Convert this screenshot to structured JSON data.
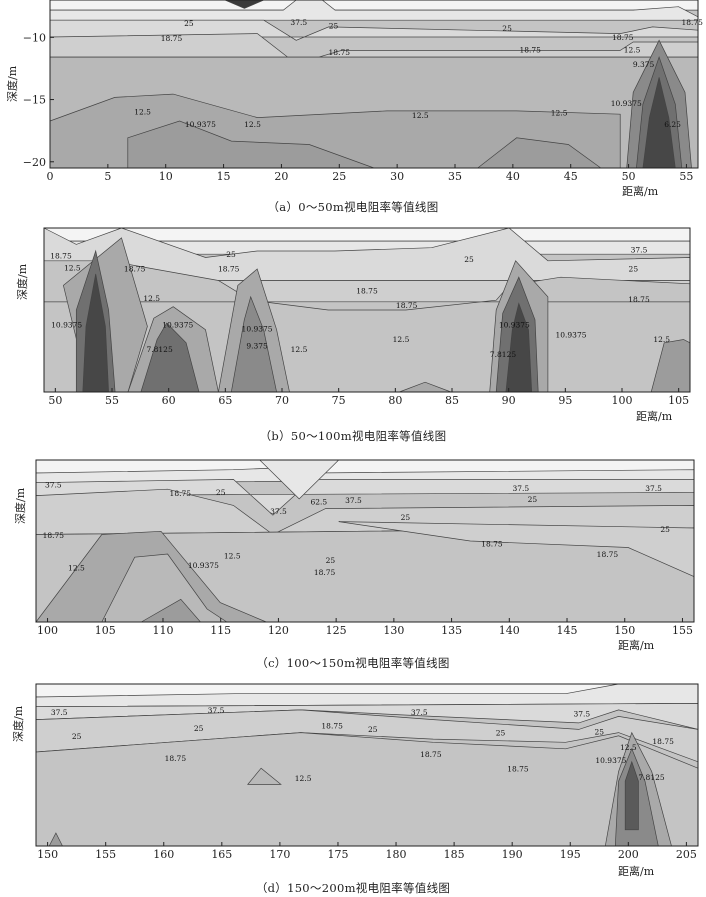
{
  "colors": {
    "background": "#ffffff",
    "contour_line": "#444444",
    "levels_fill": [
      "#a9a9a9",
      "#b9b9b9",
      "#c4c4c4",
      "#cfcfcf",
      "#dadada",
      "#e7e7e7",
      "#f4f4f4"
    ],
    "low_fill": [
      "#8a8a8a",
      "#707070",
      "#5a5a5a",
      "#474747"
    ]
  },
  "chart_data": [
    {
      "type": "contour",
      "caption": "（a）0～50m视电阻率等值线图",
      "ylabel": "深度/m",
      "xlabel": "距离/m",
      "xlim": [
        0,
        56
      ],
      "ylim": [
        -20.5,
        -7
      ],
      "xticks": [
        0,
        5,
        10,
        15,
        20,
        25,
        30,
        35,
        40,
        45,
        50,
        55
      ],
      "yticks": [
        -10,
        -15,
        -20
      ],
      "ytick_labels": [
        "−10",
        "−15",
        "−20"
      ],
      "contour_labels": [
        {
          "text": "37.5",
          "x": 21.5,
          "y": -9.0
        },
        {
          "text": "25",
          "x": 12,
          "y": -9.1
        },
        {
          "text": "25",
          "x": 24.5,
          "y": -9.3
        },
        {
          "text": "25",
          "x": 39.5,
          "y": -9.5
        },
        {
          "text": "18.75",
          "x": 10.5,
          "y": -10.3
        },
        {
          "text": "18.75",
          "x": 25,
          "y": -11.4
        },
        {
          "text": "18.75",
          "x": 41.5,
          "y": -11.2
        },
        {
          "text": "18.75",
          "x": 49.5,
          "y": -10.2
        },
        {
          "text": "18.75",
          "x": 55.5,
          "y": -9.0
        },
        {
          "text": "12.5",
          "x": 8,
          "y": -16.2
        },
        {
          "text": "12.5",
          "x": 17.5,
          "y": -17.2
        },
        {
          "text": "12.5",
          "x": 32,
          "y": -16.5
        },
        {
          "text": "12.5",
          "x": 44,
          "y": -16.3
        },
        {
          "text": "12.5",
          "x": 50.3,
          "y": -11.2
        },
        {
          "text": "10.9375",
          "x": 13,
          "y": -17.2
        },
        {
          "text": "10.9375",
          "x": 49.8,
          "y": -15.5
        },
        {
          "text": "9.375",
          "x": 51.3,
          "y": -12.4
        },
        {
          "text": "6.25",
          "x": 53.8,
          "y": -17.2
        }
      ]
    },
    {
      "type": "contour",
      "caption": "（b）50～100m视电阻率等值线图",
      "ylabel": "深度/m",
      "xlabel": "距离/m",
      "xlim": [
        49,
        106
      ],
      "ylim": [
        -20.5,
        -7
      ],
      "xticks": [
        50,
        55,
        60,
        65,
        70,
        75,
        80,
        85,
        90,
        95,
        100,
        105
      ],
      "contour_labels": [
        {
          "text": "18.75",
          "x": 50.5,
          "y": -9.5
        },
        {
          "text": "12.5",
          "x": 51.5,
          "y": -10.5
        },
        {
          "text": "25",
          "x": 65.5,
          "y": -9.4
        },
        {
          "text": "18.75",
          "x": 65.3,
          "y": -10.6
        },
        {
          "text": "18.75",
          "x": 57,
          "y": -10.6
        },
        {
          "text": "12.5",
          "x": 58.5,
          "y": -13.0
        },
        {
          "text": "10.9375",
          "x": 51,
          "y": -15.2
        },
        {
          "text": "10.9375",
          "x": 60.8,
          "y": -15.2
        },
        {
          "text": "10.9375",
          "x": 67.8,
          "y": -15.5
        },
        {
          "text": "7.8125",
          "x": 59.2,
          "y": -17.2
        },
        {
          "text": "9.375",
          "x": 67.8,
          "y": -16.9
        },
        {
          "text": "12.5",
          "x": 71.5,
          "y": -17.2
        },
        {
          "text": "12.5",
          "x": 80.5,
          "y": -16.4
        },
        {
          "text": "18.75",
          "x": 77.5,
          "y": -12.4
        },
        {
          "text": "25",
          "x": 86.5,
          "y": -9.8
        },
        {
          "text": "18.75",
          "x": 81,
          "y": -13.6
        },
        {
          "text": "37.5",
          "x": 101.5,
          "y": -9.0
        },
        {
          "text": "25",
          "x": 101,
          "y": -10.6
        },
        {
          "text": "18.75",
          "x": 101.5,
          "y": -13.1
        },
        {
          "text": "12.5",
          "x": 103.5,
          "y": -16.4
        },
        {
          "text": "10.9375",
          "x": 90.5,
          "y": -15.2
        },
        {
          "text": "7.8125",
          "x": 89.5,
          "y": -17.6
        },
        {
          "text": "10.9375",
          "x": 95.5,
          "y": -16.0
        }
      ]
    },
    {
      "type": "contour",
      "caption": "（c）100～150m视电阻率等值线图",
      "ylabel": "深度/m",
      "xlabel": "距离/m",
      "xlim": [
        99,
        156
      ],
      "ylim": [
        -20.5,
        -7
      ],
      "xticks": [
        100,
        105,
        110,
        115,
        120,
        125,
        130,
        135,
        140,
        145,
        150,
        155
      ],
      "contour_labels": [
        {
          "text": "37.5",
          "x": 100.5,
          "y": -9.3
        },
        {
          "text": "18.75",
          "x": 111.5,
          "y": -10.0
        },
        {
          "text": "25",
          "x": 115,
          "y": -9.9
        },
        {
          "text": "37.5",
          "x": 120,
          "y": -11.5
        },
        {
          "text": "62.5",
          "x": 123.5,
          "y": -10.7
        },
        {
          "text": "37.5",
          "x": 126.5,
          "y": -10.6
        },
        {
          "text": "37.5",
          "x": 141,
          "y": -9.6
        },
        {
          "text": "37.5",
          "x": 152.5,
          "y": -9.6
        },
        {
          "text": "25",
          "x": 142,
          "y": -10.5
        },
        {
          "text": "25",
          "x": 131,
          "y": -12.0
        },
        {
          "text": "25",
          "x": 153.5,
          "y": -13.0
        },
        {
          "text": "18.75",
          "x": 100.5,
          "y": -13.5
        },
        {
          "text": "18.75",
          "x": 138.5,
          "y": -14.2
        },
        {
          "text": "18.75",
          "x": 148.5,
          "y": -15.1
        },
        {
          "text": "25",
          "x": 124.5,
          "y": -15.6
        },
        {
          "text": "18.75",
          "x": 124,
          "y": -16.6
        },
        {
          "text": "12.5",
          "x": 102.5,
          "y": -16.2
        },
        {
          "text": "10.9375",
          "x": 113.5,
          "y": -16.0
        },
        {
          "text": "12.5",
          "x": 116,
          "y": -15.2
        }
      ]
    },
    {
      "type": "contour",
      "caption": "（d）150～200m视电阻率等值线图",
      "ylabel": "深度/m",
      "xlabel": "距离/m",
      "xlim": [
        149,
        206
      ],
      "ylim": [
        -20.5,
        -7
      ],
      "xticks": [
        150,
        155,
        160,
        165,
        170,
        175,
        180,
        185,
        190,
        195,
        200,
        205
      ],
      "contour_labels": [
        {
          "text": "37.5",
          "x": 151,
          "y": -9.6
        },
        {
          "text": "37.5",
          "x": 164.5,
          "y": -9.4
        },
        {
          "text": "37.5",
          "x": 182,
          "y": -9.6
        },
        {
          "text": "37.5",
          "x": 196,
          "y": -9.7
        },
        {
          "text": "25",
          "x": 152.5,
          "y": -11.6
        },
        {
          "text": "25",
          "x": 163,
          "y": -10.9
        },
        {
          "text": "25",
          "x": 178,
          "y": -11.0
        },
        {
          "text": "25",
          "x": 189,
          "y": -11.3
        },
        {
          "text": "25",
          "x": 197.5,
          "y": -11.2
        },
        {
          "text": "18.75",
          "x": 174.5,
          "y": -10.7
        },
        {
          "text": "18.75",
          "x": 161,
          "y": -13.4
        },
        {
          "text": "18.75",
          "x": 183,
          "y": -13.1
        },
        {
          "text": "18.75",
          "x": 190.5,
          "y": -14.3
        },
        {
          "text": "18.75",
          "x": 203,
          "y": -12.0
        },
        {
          "text": "12.5",
          "x": 172,
          "y": -15.1
        },
        {
          "text": "12.5",
          "x": 200,
          "y": -12.5
        },
        {
          "text": "10.9375",
          "x": 198.5,
          "y": -13.6
        },
        {
          "text": "7.8125",
          "x": 202,
          "y": -15.0
        }
      ]
    }
  ]
}
